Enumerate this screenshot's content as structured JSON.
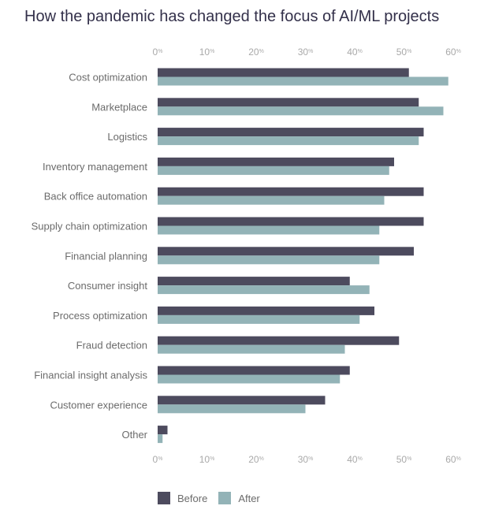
{
  "chart_data": {
    "type": "bar",
    "orientation": "horizontal",
    "title": "How the pandemic has changed the focus of AI/ML projects",
    "xlim": [
      0,
      60
    ],
    "ticks": [
      {
        "num": "0",
        "unit": "%"
      },
      {
        "num": "10",
        "unit": "%"
      },
      {
        "num": "20",
        "unit": "%"
      },
      {
        "num": "30",
        "unit": "%"
      },
      {
        "num": "40",
        "unit": "%"
      },
      {
        "num": "50",
        "unit": "%"
      },
      {
        "num": "60",
        "unit": "%"
      }
    ],
    "tick_values": [
      0,
      10,
      20,
      30,
      40,
      50,
      60
    ],
    "axis_position": "top-and-bottom",
    "grid": false,
    "legend_position": "bottom-left",
    "categories": [
      "Cost optimization",
      "Marketplace",
      "Logistics",
      "Inventory management",
      "Back office automation",
      "Supply chain optimization",
      "Financial planning",
      "Consumer insight",
      "Process optimization",
      "Fraud detection",
      "Financial insight analysis",
      "Customer experience",
      "Other"
    ],
    "series": [
      {
        "name": "Before",
        "color": "#4d4b5e",
        "values": [
          51,
          53,
          54,
          48,
          54,
          54,
          52,
          39,
          44,
          49,
          39,
          34,
          2
        ]
      },
      {
        "name": "After",
        "color": "#93b3b7",
        "values": [
          59,
          58,
          53,
          47,
          46,
          45,
          45,
          43,
          41,
          38,
          37,
          30,
          1
        ]
      }
    ]
  }
}
